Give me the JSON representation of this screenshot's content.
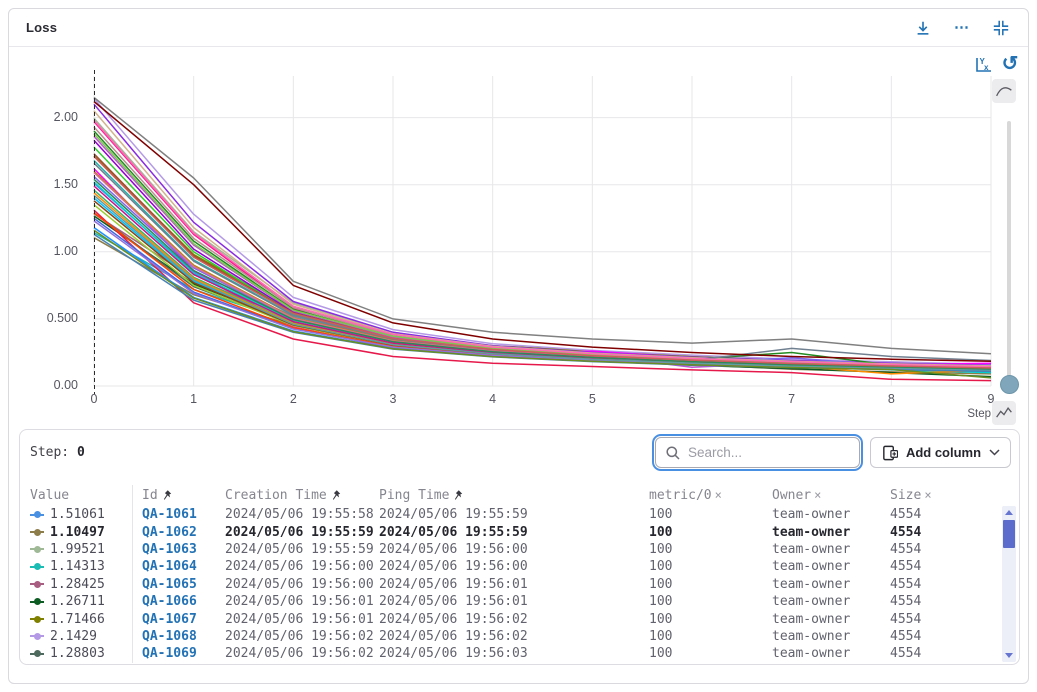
{
  "panel": {
    "title": "Loss"
  },
  "icons": {
    "more": "⋯",
    "reset": "↺",
    "remove": "×"
  },
  "chart_data": {
    "type": "line",
    "title": "Loss",
    "xlabel": "Step",
    "x": [
      0,
      1,
      2,
      3,
      4,
      5,
      6,
      7,
      8,
      9
    ],
    "xlim": [
      0,
      9
    ],
    "ylim": [
      0,
      2.31
    ],
    "grid": true,
    "legend": false,
    "step_marker": {
      "x": 0,
      "style": "dashed"
    },
    "yticks": [
      {
        "v": 0,
        "label": "0.00"
      },
      {
        "v": 0.5,
        "label": "0.500"
      },
      {
        "v": 1,
        "label": "1.00"
      },
      {
        "v": 1.5,
        "label": "1.50"
      },
      {
        "v": 2,
        "label": "2.00"
      }
    ],
    "xticks": [
      {
        "v": 0,
        "label": "0"
      },
      {
        "v": 1,
        "label": "1"
      },
      {
        "v": 2,
        "label": "2"
      },
      {
        "v": 3,
        "label": "3"
      },
      {
        "v": 4,
        "label": "4"
      },
      {
        "v": 5,
        "label": "5"
      },
      {
        "v": 6,
        "label": "6"
      },
      {
        "v": 7,
        "label": "7"
      },
      {
        "v": 8,
        "label": "8"
      },
      {
        "v": 9,
        "label": "9"
      }
    ],
    "series": [
      {
        "name": "QA-1061",
        "color": "#4a90e2",
        "values": [
          1.51061,
          0.85,
          0.52,
          0.345,
          0.27,
          0.225,
          0.185,
          0.155,
          0.135,
          0.125
        ]
      },
      {
        "name": "QA-1062",
        "color": "#8d7d4a",
        "values": [
          1.10497,
          0.68,
          0.45,
          0.3,
          0.225,
          0.185,
          0.16,
          0.125,
          0.105,
          0.09
        ]
      },
      {
        "name": "QA-1063",
        "color": "#9fb895",
        "values": [
          1.99521,
          1.15,
          0.62,
          0.4,
          0.285,
          0.24,
          0.2,
          0.17,
          0.15,
          0.14
        ]
      },
      {
        "name": "QA-1064",
        "color": "#1bbcb4",
        "values": [
          1.14313,
          0.72,
          0.475,
          0.33,
          0.26,
          0.21,
          0.175,
          0.15,
          0.14,
          0.12
        ]
      },
      {
        "name": "QA-1065",
        "color": "#a85e80",
        "values": [
          1.28425,
          0.8,
          0.5,
          0.36,
          0.285,
          0.25,
          0.21,
          0.18,
          0.155,
          0.13
        ]
      },
      {
        "name": "QA-1066",
        "color": "#0d5c23",
        "values": [
          1.26711,
          0.76,
          0.47,
          0.31,
          0.24,
          0.19,
          0.155,
          0.13,
          0.1,
          0.07
        ]
      },
      {
        "name": "QA-1067",
        "color": "#808000",
        "values": [
          1.71466,
          0.98,
          0.56,
          0.385,
          0.3,
          0.26,
          0.22,
          0.19,
          0.17,
          0.155
        ]
      },
      {
        "name": "QA-1068",
        "color": "#b49ae6",
        "values": [
          2.1429,
          1.28,
          0.66,
          0.42,
          0.315,
          0.265,
          0.23,
          0.2,
          0.18,
          0.16
        ]
      },
      {
        "name": "QA-1069",
        "color": "#4e6a5e",
        "values": [
          1.28803,
          0.74,
          0.465,
          0.32,
          0.25,
          0.205,
          0.18,
          0.16,
          0.145,
          0.13
        ]
      },
      {
        "name": "",
        "color": "#e6194b",
        "values": [
          1.31,
          0.62,
          0.35,
          0.22,
          0.17,
          0.145,
          0.12,
          0.1,
          0.05,
          0.04
        ]
      },
      {
        "name": "",
        "color": "#ff1493",
        "values": [
          1.97,
          1.13,
          0.58,
          0.33,
          0.24,
          0.2,
          0.175,
          0.155,
          0.14,
          0.13
        ]
      },
      {
        "name": "",
        "color": "#ff00ff",
        "values": [
          1.62,
          0.86,
          0.44,
          0.28,
          0.235,
          0.26,
          0.21,
          0.18,
          0.16,
          0.17
        ]
      },
      {
        "name": "",
        "color": "#9400d3",
        "values": [
          1.83,
          1.02,
          0.55,
          0.36,
          0.27,
          0.22,
          0.195,
          0.175,
          0.16,
          0.15
        ]
      },
      {
        "name": "",
        "color": "#8a2be2",
        "values": [
          2.1,
          1.22,
          0.63,
          0.4,
          0.3,
          0.25,
          0.215,
          0.19,
          0.17,
          0.155
        ]
      },
      {
        "name": "",
        "color": "#7b68ee",
        "values": [
          1.56,
          0.88,
          0.5,
          0.34,
          0.265,
          0.225,
          0.17,
          0.21,
          0.15,
          0.135
        ]
      },
      {
        "name": "",
        "color": "#4169e1",
        "values": [
          1.25,
          0.7,
          0.43,
          0.295,
          0.235,
          0.2,
          0.17,
          0.15,
          0.135,
          0.12
        ]
      },
      {
        "name": "",
        "color": "#1e90ff",
        "values": [
          1.18,
          0.66,
          0.41,
          0.28,
          0.22,
          0.185,
          0.16,
          0.14,
          0.125,
          0.115
        ]
      },
      {
        "name": "",
        "color": "#00bfff",
        "values": [
          1.4,
          0.78,
          0.46,
          0.31,
          0.245,
          0.205,
          0.175,
          0.155,
          0.14,
          0.125
        ]
      },
      {
        "name": "",
        "color": "#00ced1",
        "values": [
          1.52,
          0.84,
          0.49,
          0.33,
          0.255,
          0.215,
          0.185,
          0.16,
          0.12,
          0.1
        ]
      },
      {
        "name": "",
        "color": "#20b2aa",
        "values": [
          1.68,
          0.94,
          0.53,
          0.35,
          0.27,
          0.225,
          0.19,
          0.165,
          0.15,
          0.135
        ]
      },
      {
        "name": "",
        "color": "#3cb371",
        "values": [
          1.46,
          0.81,
          0.47,
          0.315,
          0.245,
          0.205,
          0.175,
          0.155,
          0.14,
          0.125
        ]
      },
      {
        "name": "",
        "color": "#228b22",
        "values": [
          1.9,
          1.08,
          0.57,
          0.37,
          0.28,
          0.23,
          0.2,
          0.25,
          0.155,
          0.14
        ]
      },
      {
        "name": "",
        "color": "#32cd32",
        "values": [
          1.78,
          1.0,
          0.54,
          0.355,
          0.27,
          0.225,
          0.195,
          0.17,
          0.15,
          0.135
        ]
      },
      {
        "name": "",
        "color": "#9acd32",
        "values": [
          1.35,
          0.75,
          0.45,
          0.305,
          0.24,
          0.2,
          0.17,
          0.15,
          0.135,
          0.12
        ]
      },
      {
        "name": "",
        "color": "#b8860b",
        "values": [
          1.6,
          0.9,
          0.51,
          0.34,
          0.26,
          0.215,
          0.185,
          0.16,
          0.145,
          0.13
        ]
      },
      {
        "name": "",
        "color": "#ff8c00",
        "values": [
          1.44,
          0.8,
          0.465,
          0.31,
          0.24,
          0.2,
          0.17,
          0.15,
          0.09,
          0.12
        ]
      },
      {
        "name": "",
        "color": "#ff4500",
        "values": [
          1.29,
          0.72,
          0.435,
          0.295,
          0.23,
          0.19,
          0.165,
          0.145,
          0.13,
          0.115
        ]
      },
      {
        "name": "",
        "color": "#a0522d",
        "values": [
          1.73,
          0.97,
          0.545,
          0.36,
          0.275,
          0.23,
          0.195,
          0.17,
          0.15,
          0.135
        ]
      },
      {
        "name": "",
        "color": "#8b4513",
        "values": [
          1.38,
          0.77,
          0.455,
          0.305,
          0.24,
          0.2,
          0.17,
          0.15,
          0.135,
          0.12
        ]
      },
      {
        "name": "",
        "color": "#bc8f8f",
        "values": [
          1.93,
          1.1,
          0.585,
          0.375,
          0.285,
          0.235,
          0.2,
          0.175,
          0.155,
          0.14
        ]
      },
      {
        "name": "",
        "color": "#d2b48c",
        "values": [
          2.05,
          1.18,
          0.61,
          0.39,
          0.295,
          0.245,
          0.21,
          0.185,
          0.165,
          0.15
        ]
      },
      {
        "name": "",
        "color": "#808080",
        "values": [
          2.15,
          1.55,
          0.78,
          0.5,
          0.4,
          0.35,
          0.32,
          0.35,
          0.28,
          0.24
        ]
      },
      {
        "name": "",
        "color": "#708090",
        "values": [
          1.66,
          0.93,
          0.525,
          0.35,
          0.268,
          0.224,
          0.19,
          0.28,
          0.22,
          0.19
        ]
      },
      {
        "name": "",
        "color": "#c71585",
        "values": [
          1.49,
          0.83,
          0.48,
          0.32,
          0.25,
          0.21,
          0.18,
          0.155,
          0.14,
          0.125
        ]
      },
      {
        "name": "",
        "color": "#db7093",
        "values": [
          1.59,
          0.89,
          0.505,
          0.335,
          0.26,
          0.215,
          0.185,
          0.16,
          0.145,
          0.13
        ]
      },
      {
        "name": "",
        "color": "#800000",
        "values": [
          2.12,
          1.5,
          0.75,
          0.47,
          0.35,
          0.29,
          0.25,
          0.22,
          0.2,
          0.185
        ]
      },
      {
        "name": "",
        "color": "#9370db",
        "values": [
          1.23,
          0.69,
          0.425,
          0.29,
          0.228,
          0.19,
          0.163,
          0.143,
          0.128,
          0.113
        ]
      },
      {
        "name": "",
        "color": "#ba55d3",
        "values": [
          1.86,
          1.05,
          0.56,
          0.365,
          0.277,
          0.23,
          0.14,
          0.172,
          0.152,
          0.137
        ]
      },
      {
        "name": "",
        "color": "#4682b4",
        "values": [
          1.13,
          0.64,
          0.4,
          0.275,
          0.217,
          0.182,
          0.156,
          0.137,
          0.122,
          0.109
        ]
      },
      {
        "name": "",
        "color": "#5f9ea0",
        "values": [
          1.42,
          0.79,
          0.46,
          0.308,
          0.24,
          0.2,
          0.171,
          0.15,
          0.134,
          0.119
        ]
      },
      {
        "name": "",
        "color": "#2e8b57",
        "values": [
          1.54,
          0.86,
          0.495,
          0.33,
          0.255,
          0.213,
          0.182,
          0.159,
          0.142,
          0.127
        ]
      },
      {
        "name": "",
        "color": "#7ec850",
        "values": [
          1.88,
          1.06,
          0.565,
          0.37,
          0.28,
          0.232,
          0.198,
          0.173,
          0.153,
          0.138
        ]
      },
      {
        "name": "",
        "color": "#ff69b4",
        "values": [
          1.98,
          1.14,
          0.595,
          0.385,
          0.29,
          0.24,
          0.205,
          0.18,
          0.16,
          0.144
        ]
      },
      {
        "name": "",
        "color": "#6b8e23",
        "values": [
          1.16,
          0.655,
          0.405,
          0.278,
          0.219,
          0.184,
          0.158,
          0.138,
          0.123,
          0.06
        ]
      },
      {
        "name": "",
        "color": "#cd5c5c",
        "values": [
          1.71,
          0.96,
          0.54,
          0.355,
          0.272,
          0.226,
          0.193,
          0.168,
          0.149,
          0.134
        ]
      }
    ]
  },
  "table": {
    "step_label": "Step:",
    "step_value": "0",
    "search": {
      "placeholder": "Search..."
    },
    "add_column_label": "Add column",
    "columns": [
      {
        "label": "Value",
        "icon": ""
      },
      {
        "label": "Id",
        "icon": "pin"
      },
      {
        "label": "Creation Time",
        "icon": "pin"
      },
      {
        "label": "Ping Time",
        "icon": "pin"
      },
      {
        "label": "metric/0",
        "icon": "remove"
      },
      {
        "label": "Owner",
        "icon": "remove"
      },
      {
        "label": "Size",
        "icon": "remove"
      }
    ],
    "rows": [
      {
        "color": "#4a90e2",
        "value": "1.51061",
        "id": "QA-1061",
        "creation": "2024/05/06 19:55:58",
        "ping": "2024/05/06 19:55:59",
        "metric": "100",
        "owner": "team-owner",
        "size": "4554",
        "bold": false
      },
      {
        "color": "#8d7d4a",
        "value": "1.10497",
        "id": "QA-1062",
        "creation": "2024/05/06 19:55:59",
        "ping": "2024/05/06 19:55:59",
        "metric": "100",
        "owner": "team-owner",
        "size": "4554",
        "bold": true
      },
      {
        "color": "#9fb895",
        "value": "1.99521",
        "id": "QA-1063",
        "creation": "2024/05/06 19:55:59",
        "ping": "2024/05/06 19:56:00",
        "metric": "100",
        "owner": "team-owner",
        "size": "4554",
        "bold": false
      },
      {
        "color": "#1bbcb4",
        "value": "1.14313",
        "id": "QA-1064",
        "creation": "2024/05/06 19:56:00",
        "ping": "2024/05/06 19:56:00",
        "metric": "100",
        "owner": "team-owner",
        "size": "4554",
        "bold": false
      },
      {
        "color": "#a85e80",
        "value": "1.28425",
        "id": "QA-1065",
        "creation": "2024/05/06 19:56:00",
        "ping": "2024/05/06 19:56:01",
        "metric": "100",
        "owner": "team-owner",
        "size": "4554",
        "bold": false
      },
      {
        "color": "#0d5c23",
        "value": "1.26711",
        "id": "QA-1066",
        "creation": "2024/05/06 19:56:01",
        "ping": "2024/05/06 19:56:01",
        "metric": "100",
        "owner": "team-owner",
        "size": "4554",
        "bold": false
      },
      {
        "color": "#808000",
        "value": "1.71466",
        "id": "QA-1067",
        "creation": "2024/05/06 19:56:01",
        "ping": "2024/05/06 19:56:02",
        "metric": "100",
        "owner": "team-owner",
        "size": "4554",
        "bold": false
      },
      {
        "color": "#b49ae6",
        "value": "2.1429",
        "id": "QA-1068",
        "creation": "2024/05/06 19:56:02",
        "ping": "2024/05/06 19:56:02",
        "metric": "100",
        "owner": "team-owner",
        "size": "4554",
        "bold": false
      },
      {
        "color": "#4e6a5e",
        "value": "1.28803",
        "id": "QA-1069",
        "creation": "2024/05/06 19:56:02",
        "ping": "2024/05/06 19:56:03",
        "metric": "100",
        "owner": "team-owner",
        "size": "4554",
        "bold": false
      }
    ]
  }
}
